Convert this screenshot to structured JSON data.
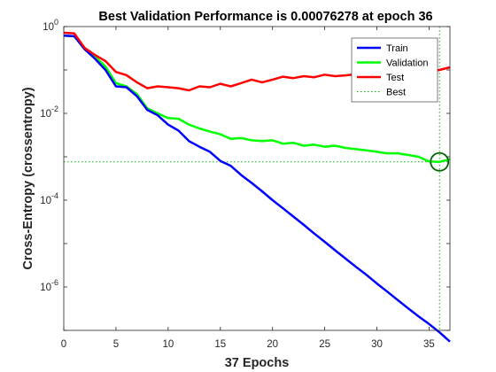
{
  "chart_data": {
    "type": "line",
    "title": "Best Validation Performance is 0.00076278 at epoch 36",
    "xlabel": "37 Epochs",
    "ylabel": "Cross-Entropy  (crossentropy)",
    "xlim": [
      0,
      37
    ],
    "ylim": [
      1e-07,
      1
    ],
    "yscale": "log",
    "grid": false,
    "legend_position": "top-right",
    "x_ticks": [
      0,
      5,
      10,
      15,
      20,
      25,
      30,
      35
    ],
    "y_ticks": [
      {
        "value": 1,
        "base": "10",
        "exp": "0"
      },
      {
        "value": 0.01,
        "base": "10",
        "exp": "-2"
      },
      {
        "value": 0.0001,
        "base": "10",
        "exp": "-4"
      },
      {
        "value": 1e-06,
        "base": "10",
        "exp": "-6"
      }
    ],
    "x": [
      0,
      1,
      2,
      3,
      4,
      5,
      6,
      7,
      8,
      9,
      10,
      11,
      12,
      13,
      14,
      15,
      16,
      17,
      18,
      19,
      20,
      21,
      22,
      23,
      24,
      25,
      26,
      27,
      28,
      29,
      30,
      31,
      32,
      33,
      34,
      35,
      36,
      37
    ],
    "series": [
      {
        "name": "Train",
        "color": "#0000ff",
        "style": "solid",
        "values": [
          0.62,
          0.6,
          0.3,
          0.18,
          0.1,
          0.042,
          0.04,
          0.025,
          0.012,
          0.009,
          0.0055,
          0.004,
          0.0023,
          0.0017,
          0.0013,
          0.0008,
          0.00062,
          0.00038,
          0.00025,
          0.00016,
          0.0001,
          6.5e-05,
          4.2e-05,
          2.7e-05,
          1.7e-05,
          1.1e-05,
          7e-06,
          4.5e-06,
          2.9e-06,
          1.9e-06,
          1.2e-06,
          7.8e-07,
          5e-07,
          3.2e-07,
          2.1e-07,
          1.4e-07,
          9e-08,
          5.5e-08
        ]
      },
      {
        "name": "Validation",
        "color": "#00ff00",
        "style": "solid",
        "values": [
          0.62,
          0.6,
          0.3,
          0.2,
          0.12,
          0.05,
          0.042,
          0.028,
          0.013,
          0.01,
          0.0078,
          0.0075,
          0.0055,
          0.0045,
          0.0038,
          0.0033,
          0.0026,
          0.0027,
          0.0024,
          0.0023,
          0.0024,
          0.002,
          0.0021,
          0.0018,
          0.0019,
          0.0017,
          0.0018,
          0.0016,
          0.0015,
          0.0014,
          0.0013,
          0.0012,
          0.0012,
          0.0011,
          0.001,
          0.00078,
          0.00076278,
          0.00088
        ]
      },
      {
        "name": "Test",
        "color": "#ff0000",
        "style": "solid",
        "values": [
          0.72,
          0.7,
          0.32,
          0.22,
          0.16,
          0.09,
          0.076,
          0.052,
          0.038,
          0.042,
          0.04,
          0.038,
          0.034,
          0.042,
          0.04,
          0.048,
          0.042,
          0.05,
          0.06,
          0.052,
          0.06,
          0.07,
          0.065,
          0.072,
          0.068,
          0.078,
          0.072,
          0.075,
          0.08,
          0.078,
          0.09,
          0.086,
          0.095,
          0.088,
          0.1,
          0.092,
          0.1,
          0.115
        ]
      }
    ],
    "best": {
      "name": "Best",
      "epoch": 36,
      "value": 0.00076278,
      "color": "#00bb00",
      "style": "dotted"
    }
  }
}
